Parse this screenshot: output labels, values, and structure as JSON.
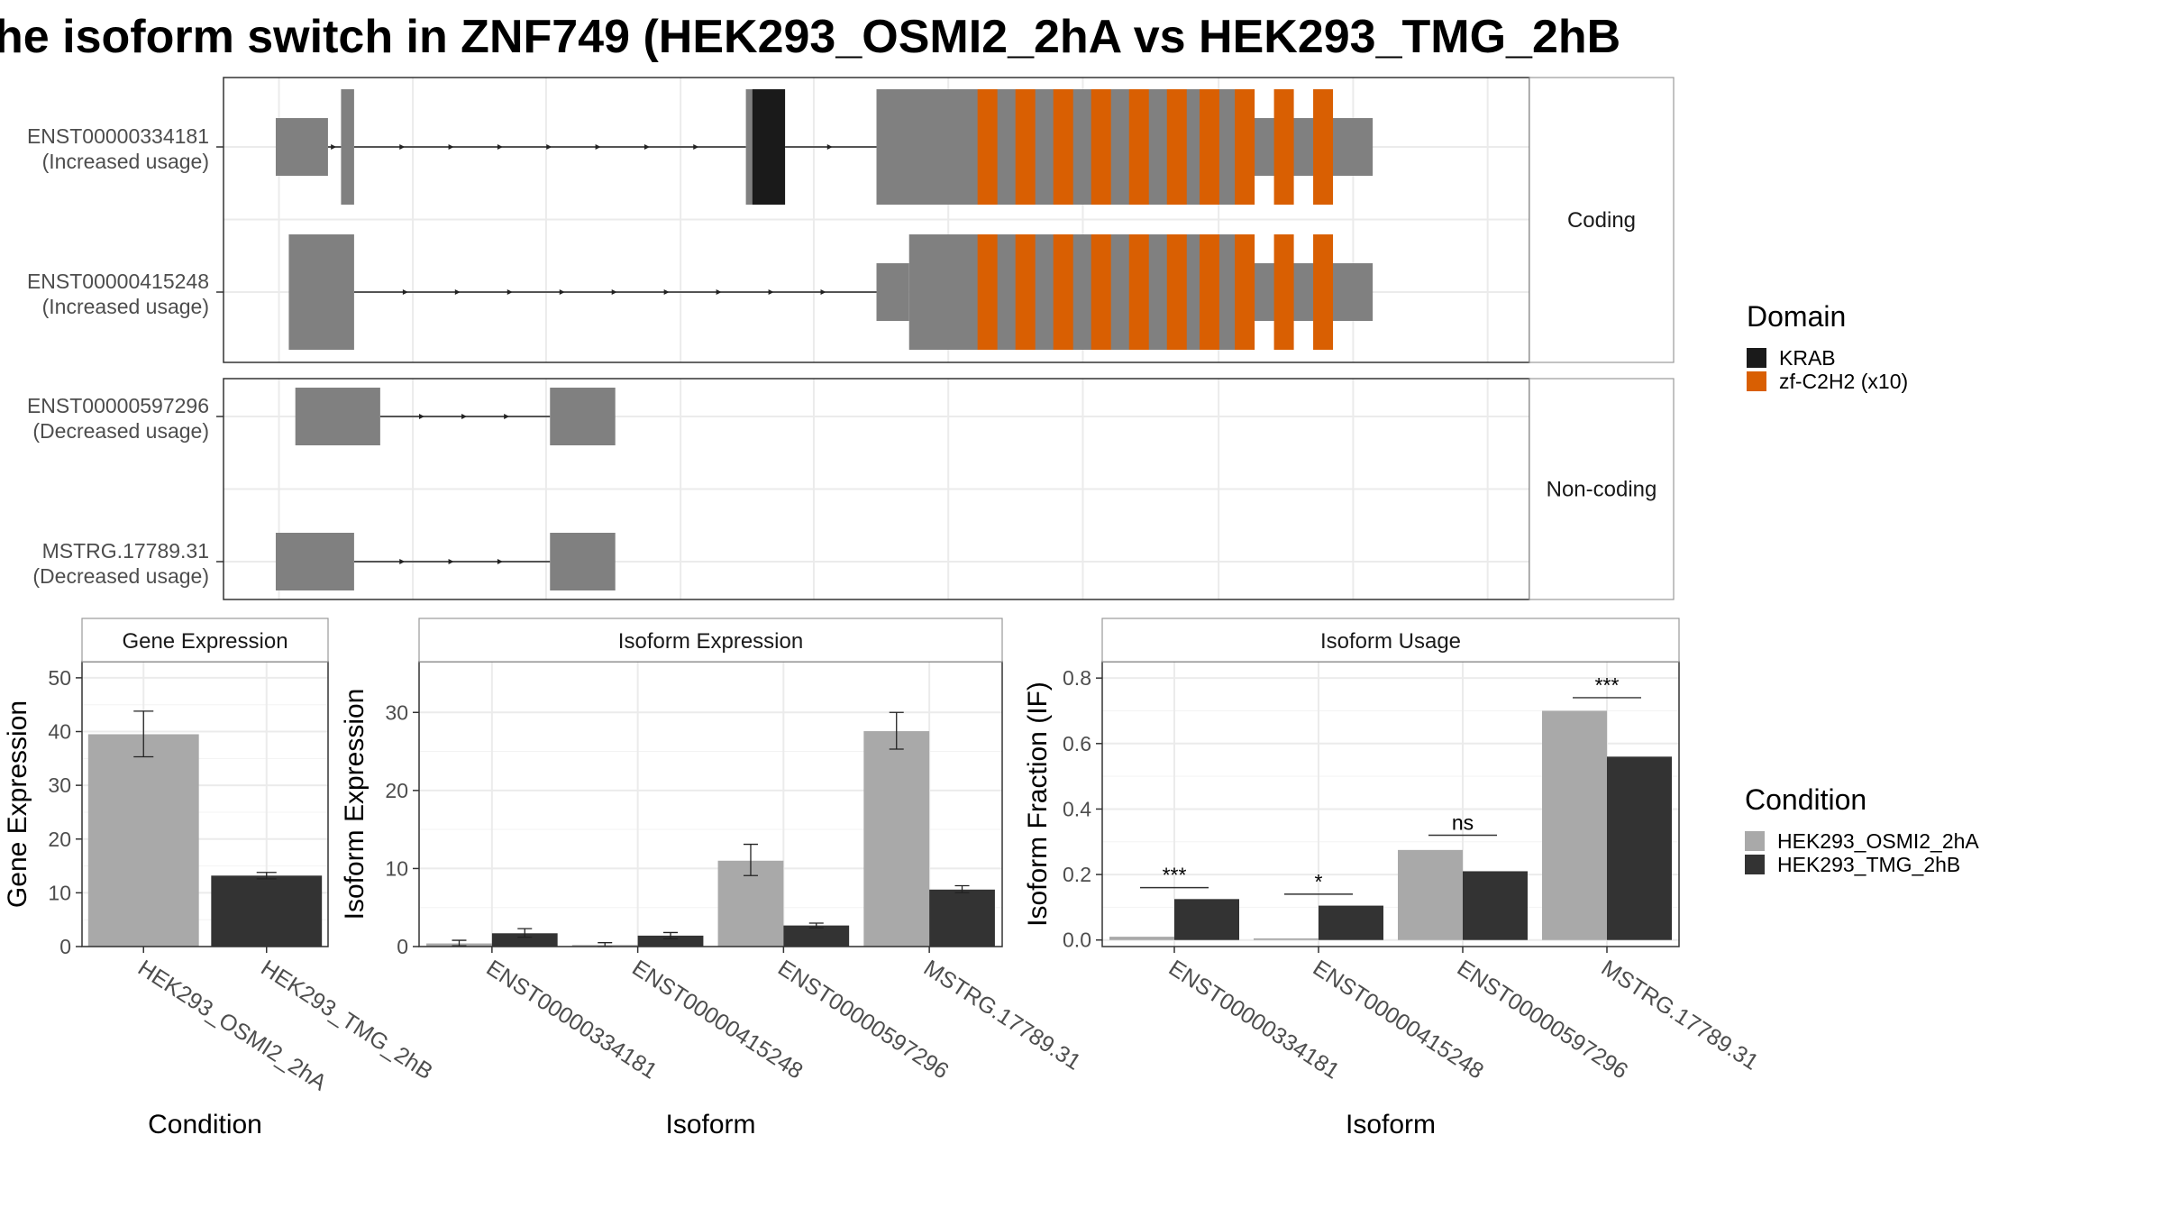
{
  "title": "he isoform switch in ZNF749 (HEK293_OSMI2_2hA vs HEK293_TMG_2hB",
  "colors": {
    "exon": "#808080",
    "krab": "#1a1a1a",
    "zf": "#d95f02",
    "condA": "#a9a9a9",
    "condB": "#333333",
    "grid": "#ebebeb",
    "strip": "#ffffff"
  },
  "transcripts": {
    "facets": [
      {
        "label": "Coding",
        "rows": [
          {
            "id": "ENST00000334181",
            "usage": "(Increased usage)",
            "exons": [
              [
                0.04,
                0.08,
                "utr"
              ],
              [
                0.09,
                0.1,
                "cds"
              ],
              [
                0.4,
                0.43,
                "cds"
              ],
              [
                0.5,
                0.78,
                "cds"
              ],
              [
                0.78,
                0.88,
                "utr"
              ]
            ],
            "domains": [
              {
                "type": "krab",
                "range": [
                  0.405,
                  0.43
                ]
              }
            ]
          },
          {
            "id": "ENST00000415248",
            "usage": "(Increased usage)",
            "exons": [
              [
                0.05,
                0.1,
                "cds"
              ],
              [
                0.5,
                0.525,
                "utr"
              ],
              [
                0.525,
                0.78,
                "cds"
              ],
              [
                0.78,
                0.88,
                "utr"
              ]
            ],
            "domains": []
          }
        ]
      },
      {
        "label": "Non-coding",
        "rows": [
          {
            "id": "ENST00000597296",
            "usage": "(Decreased usage)",
            "exons": [
              [
                0.055,
                0.12,
                "nc"
              ],
              [
                0.25,
                0.3,
                "nc"
              ]
            ],
            "domains": []
          },
          {
            "id": "MSTRG.17789.31",
            "usage": "(Decreased usage)",
            "exons": [
              [
                0.04,
                0.1,
                "nc"
              ],
              [
                0.25,
                0.3,
                "nc"
              ]
            ],
            "domains": []
          }
        ]
      }
    ],
    "zf_positions": [
      0.585,
      0.614,
      0.643,
      0.672,
      0.701,
      0.73,
      0.755,
      0.782,
      0.812,
      0.842
    ]
  },
  "legend_domain": {
    "title": "Domain",
    "items": [
      {
        "label": "KRAB",
        "color_key": "krab"
      },
      {
        "label": "zf-C2H2 (x10)",
        "color_key": "zf"
      }
    ]
  },
  "legend_condition": {
    "title": "Condition",
    "items": [
      {
        "label": "HEK293_OSMI2_2hA",
        "color_key": "condA"
      },
      {
        "label": "HEK293_TMG_2hB",
        "color_key": "condB"
      }
    ]
  },
  "chart_data": [
    {
      "type": "bar",
      "title": "Gene Expression",
      "xlabel": "Condition",
      "ylabel": "Gene Expression",
      "ylim": [
        0,
        53
      ],
      "yticks": [
        0,
        10,
        20,
        30,
        40,
        50
      ],
      "categories": [
        "HEK293_OSMI2_2hA",
        "HEK293_TMG_2hB"
      ],
      "series": [
        {
          "name": "HEK293_OSMI2_2hA",
          "values": [
            39.5,
            null
          ],
          "errors": [
            [
              35.3,
              43.8
            ],
            null
          ]
        },
        {
          "name": "HEK293_TMG_2hB",
          "values": [
            null,
            13.2
          ],
          "errors": [
            null,
            [
              12.6,
              13.8
            ]
          ]
        }
      ]
    },
    {
      "type": "bar",
      "title": "Isoform Expression",
      "xlabel": "Isoform",
      "ylabel": "Isoform Expression",
      "ylim": [
        0,
        36.5
      ],
      "yticks": [
        0,
        10,
        20,
        30
      ],
      "categories": [
        "ENST00000334181",
        "ENST00000415248",
        "ENST00000597296",
        "MSTRG.17789.31"
      ],
      "series": [
        {
          "name": "HEK293_OSMI2_2hA",
          "values": [
            0.4,
            0.2,
            11.0,
            27.6
          ],
          "errors": [
            [
              0.1,
              0.8
            ],
            [
              0.0,
              0.5
            ],
            [
              9.1,
              13.1
            ],
            [
              25.3,
              30.0
            ]
          ]
        },
        {
          "name": "HEK293_TMG_2hB",
          "values": [
            1.7,
            1.4,
            2.7,
            7.3
          ],
          "errors": [
            [
              1.2,
              2.3
            ],
            [
              1.0,
              1.8
            ],
            [
              2.4,
              3.0
            ],
            [
              6.9,
              7.8
            ]
          ]
        }
      ]
    },
    {
      "type": "bar",
      "title": "Isoform Usage",
      "xlabel": "Isoform",
      "ylabel": "Isoform Fraction (IF)",
      "ylim": [
        -0.02,
        0.85
      ],
      "yticks": [
        0.0,
        0.2,
        0.4,
        0.6,
        0.8
      ],
      "ytick_labels": [
        "0.0",
        "0.2",
        "0.4",
        "0.6",
        "0.8"
      ],
      "categories": [
        "ENST00000334181",
        "ENST00000415248",
        "ENST00000597296",
        "MSTRG.17789.31"
      ],
      "series": [
        {
          "name": "HEK293_OSMI2_2hA",
          "values": [
            0.01,
            0.005,
            0.275,
            0.7
          ]
        },
        {
          "name": "HEK293_TMG_2hB",
          "values": [
            0.125,
            0.105,
            0.21,
            0.56
          ]
        }
      ],
      "annotations": [
        {
          "category": "ENST00000334181",
          "label": "***",
          "y": 0.16
        },
        {
          "category": "ENST00000415248",
          "label": "*",
          "y": 0.14
        },
        {
          "category": "ENST00000597296",
          "label": "ns",
          "y": 0.32
        },
        {
          "category": "MSTRG.17789.31",
          "label": "***",
          "y": 0.74
        }
      ]
    }
  ]
}
